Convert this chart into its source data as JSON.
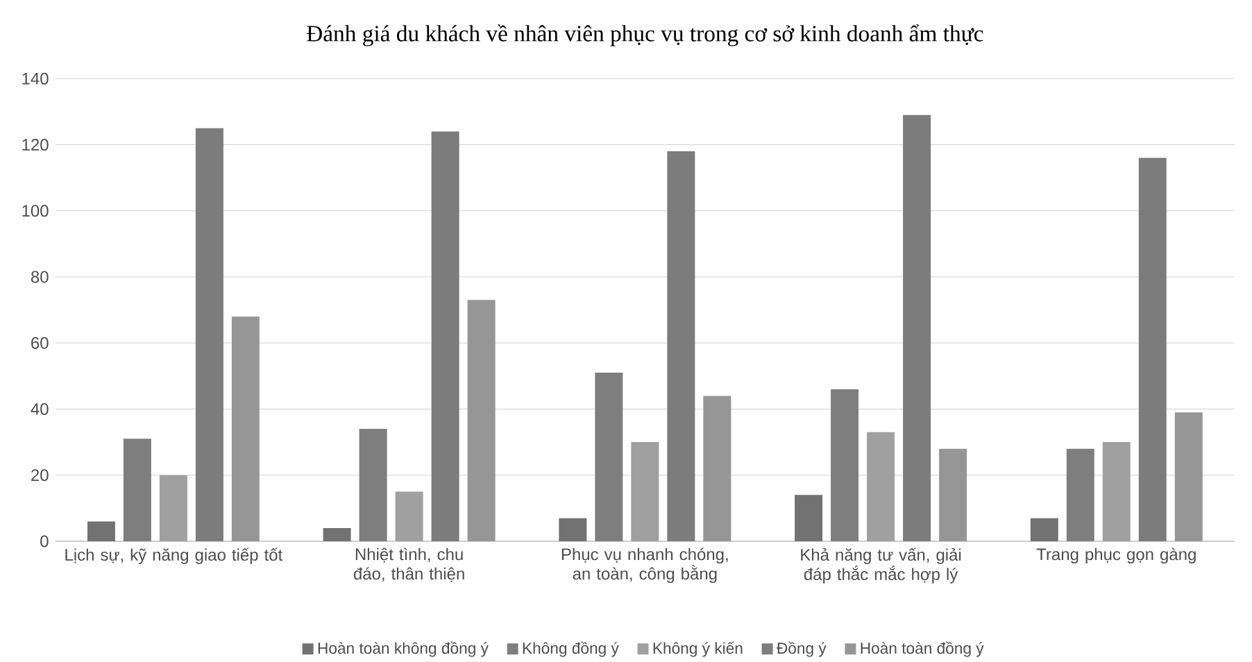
{
  "chart_data": {
    "type": "bar",
    "title": "Đánh giá du khách về nhân viên phục vụ trong cơ sở kinh doanh ẩm thực",
    "categories": [
      "Lịch sự, kỹ năng giao tiếp tốt",
      "Nhiệt tình, chu đáo, thân thiện",
      "Phục vụ nhanh chóng, an toàn, công bằng",
      "Khả năng tư vấn, giải đáp thắc mắc hợp lý",
      "Trang phục gọn gàng"
    ],
    "series": [
      {
        "name": "Hoàn toàn không đồng ý",
        "color": "#727272",
        "values": [
          6,
          4,
          7,
          14,
          7
        ]
      },
      {
        "name": "Không đồng ý",
        "color": "#7e7e7e",
        "values": [
          31,
          34,
          51,
          46,
          28
        ]
      },
      {
        "name": "Không ý kiến",
        "color": "#a0a0a0",
        "values": [
          20,
          15,
          30,
          33,
          30
        ]
      },
      {
        "name": "Đồng ý",
        "color": "#7c7c7c",
        "values": [
          125,
          124,
          118,
          129,
          116
        ]
      },
      {
        "name": "Hoàn toàn đồng ý",
        "color": "#969696",
        "values": [
          68,
          73,
          44,
          28,
          39
        ]
      }
    ],
    "ylim": [
      0,
      140
    ],
    "yticks": [
      0,
      20,
      40,
      60,
      80,
      100,
      120,
      140
    ],
    "grid": "y",
    "legend": "bottom"
  }
}
